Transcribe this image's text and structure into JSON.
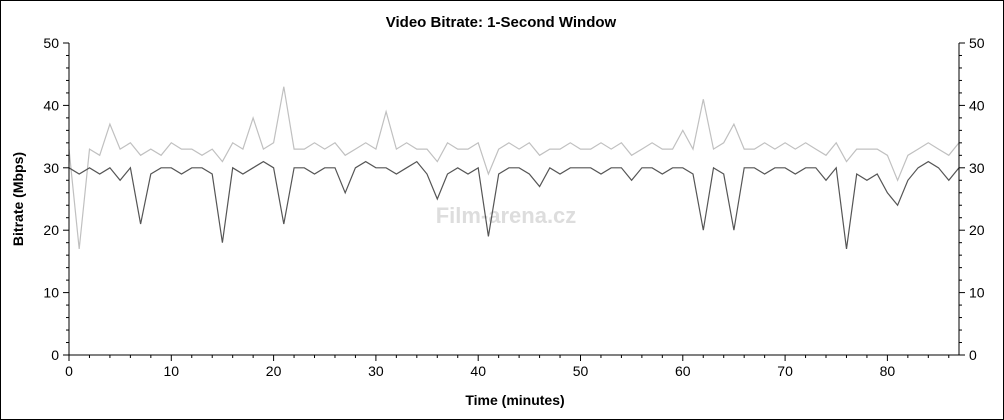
{
  "chart_data": {
    "type": "line",
    "title": "Video Bitrate: 1-Second Window",
    "xlabel": "Time (minutes)",
    "ylabel": "Bitrate (Mbps)",
    "xlim": [
      0,
      87
    ],
    "ylim": [
      0,
      50
    ],
    "xticks": [
      0,
      10,
      20,
      30,
      40,
      50,
      60,
      70,
      80
    ],
    "yticks": [
      0,
      10,
      20,
      30,
      40,
      50
    ],
    "grid": false,
    "watermark": "Film-arena.cz",
    "x": [
      0,
      1,
      2,
      3,
      4,
      5,
      6,
      7,
      8,
      9,
      10,
      11,
      12,
      13,
      14,
      15,
      16,
      17,
      18,
      19,
      20,
      21,
      22,
      23,
      24,
      25,
      26,
      27,
      28,
      29,
      30,
      31,
      32,
      33,
      34,
      35,
      36,
      37,
      38,
      39,
      40,
      41,
      42,
      43,
      44,
      45,
      46,
      47,
      48,
      49,
      50,
      51,
      52,
      53,
      54,
      55,
      56,
      57,
      58,
      59,
      60,
      61,
      62,
      63,
      64,
      65,
      66,
      67,
      68,
      69,
      70,
      71,
      72,
      73,
      74,
      75,
      76,
      77,
      78,
      79,
      80,
      81,
      82,
      83,
      84,
      85,
      86,
      87
    ],
    "series": [
      {
        "color": "#c0c0c0",
        "values": [
          33,
          17,
          33,
          32,
          37,
          33,
          34,
          32,
          33,
          32,
          34,
          33,
          33,
          32,
          33,
          31,
          34,
          33,
          38,
          33,
          34,
          43,
          33,
          33,
          34,
          33,
          34,
          32,
          33,
          34,
          33,
          39,
          33,
          34,
          33,
          33,
          31,
          34,
          33,
          33,
          34,
          29,
          33,
          34,
          33,
          34,
          32,
          33,
          33,
          34,
          33,
          33,
          34,
          33,
          34,
          32,
          33,
          34,
          33,
          33,
          36,
          33,
          41,
          33,
          34,
          37,
          33,
          33,
          34,
          33,
          34,
          33,
          34,
          33,
          32,
          34,
          31,
          33,
          33,
          33,
          32,
          28,
          32,
          33,
          34,
          33,
          32,
          34
        ]
      },
      {
        "color": "#555555",
        "values": [
          30,
          29,
          30,
          29,
          30,
          28,
          30,
          21,
          29,
          30,
          30,
          29,
          30,
          30,
          29,
          18,
          30,
          29,
          30,
          31,
          30,
          21,
          30,
          30,
          29,
          30,
          30,
          26,
          30,
          31,
          30,
          30,
          29,
          30,
          31,
          29,
          25,
          29,
          30,
          29,
          30,
          19,
          29,
          30,
          30,
          29,
          27,
          30,
          29,
          30,
          30,
          30,
          29,
          30,
          30,
          28,
          30,
          30,
          29,
          30,
          30,
          29,
          20,
          30,
          29,
          20,
          30,
          30,
          29,
          30,
          30,
          29,
          30,
          30,
          28,
          30,
          17,
          29,
          28,
          29,
          26,
          24,
          28,
          30,
          31,
          30,
          28,
          30
        ]
      }
    ]
  }
}
